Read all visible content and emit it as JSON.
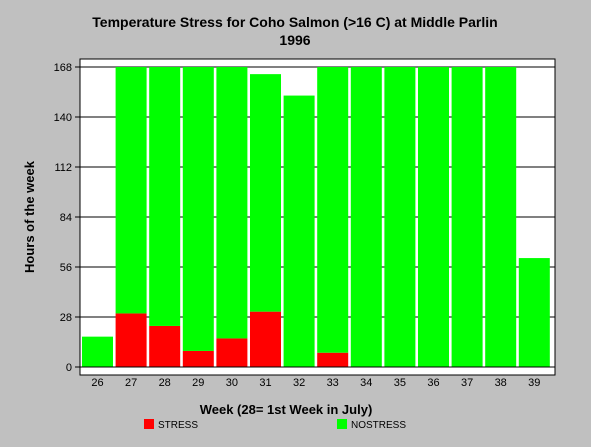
{
  "chart_data": {
    "type": "bar",
    "stacked": true,
    "title": "Temperature Stress for Coho Salmon (>16 C) at Middle Parlin",
    "subtitle": "1996",
    "xlabel": "Week (28= 1st Week in July)",
    "ylabel": "Hours of the week",
    "ylim": [
      0,
      168
    ],
    "yticks": [
      0,
      28,
      56,
      84,
      112,
      140,
      168
    ],
    "grid": true,
    "legend_position": "bottom",
    "categories": [
      "26",
      "27",
      "28",
      "29",
      "30",
      "31",
      "32",
      "33",
      "34",
      "35",
      "36",
      "37",
      "38",
      "39"
    ],
    "series": [
      {
        "name": "STRESS",
        "color": "#ff0000",
        "values": [
          0,
          30,
          23,
          9,
          16,
          31,
          0,
          8,
          0,
          0,
          0,
          0,
          0,
          0
        ]
      },
      {
        "name": "NOSTRESS",
        "color": "#00ff00",
        "values": [
          17,
          138,
          145,
          159,
          152,
          133,
          152,
          160,
          168,
          168,
          168,
          168,
          168,
          61
        ]
      }
    ]
  }
}
